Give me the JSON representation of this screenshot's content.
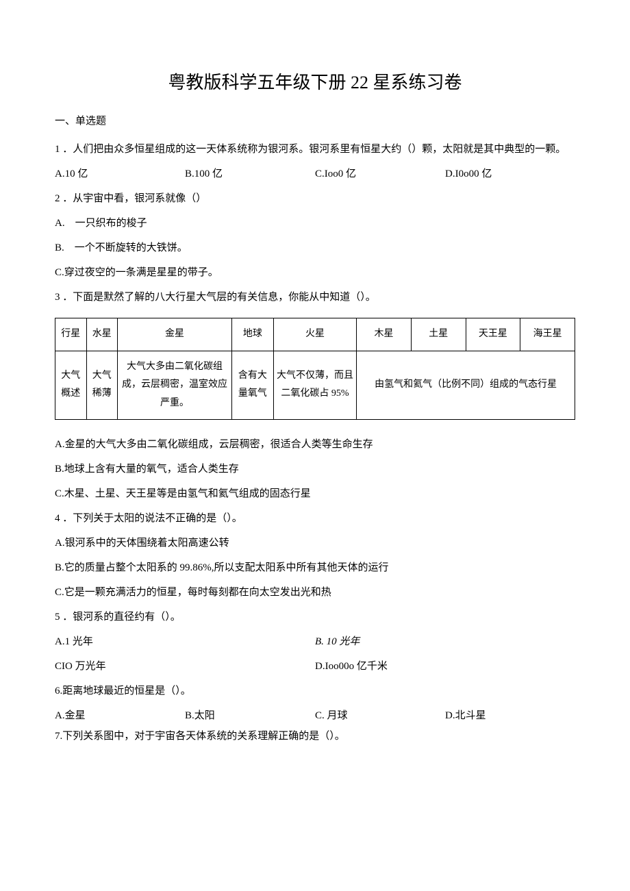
{
  "title": "粤教版科学五年级下册 22 星系练习卷",
  "section1": "一、单选题",
  "q1": {
    "stem": "1 ．人们把由众多恒星组成的这一天体系统称为银河系。银河系里有恒星大约（）颗，太阳就是其中典型的一颗。",
    "opts": {
      "a": "A.10 亿",
      "b": "B.100 亿",
      "c": "C.Ioo0 亿",
      "d": "D.I0o00 亿"
    }
  },
  "q2": {
    "stem": "2 ．从宇宙中看，银河系就像（）",
    "a": "A.　一只织布的梭子",
    "b": "B.　一个不断旋转的大铁饼。",
    "c": "C.穿过夜空的一条满是星星的带子。"
  },
  "q3": {
    "stem": "3 ．下面是默然了解的八大行星大气层的有关信息，你能从中知道（）。",
    "table": {
      "r1": {
        "c1": "行星",
        "c2": "水星",
        "c3": "金星",
        "c4": "地球",
        "c5": "火星",
        "c6": "木星",
        "c7": "土星",
        "c8": "天王星",
        "c9": "海王星"
      },
      "r2": {
        "c1": "大气概述",
        "c2": "大气稀薄",
        "c3": "大气大多由二氧化碳组成，云层稠密，温室效应严重。",
        "c4": "含有大量氧气",
        "c5": "大气不仅薄，而且二氧化碳占 95%",
        "c6": "由氢气和氦气（比例不同）组成的气态行星"
      }
    },
    "a": "A.金星的大气大多由二氧化碳组成，云层稠密，很适合人类等生命生存",
    "b": "B.地球上含有大量的氧气，适合人类生存",
    "c": "C.木星、土星、天王星等是由氢气和氦气组成的固态行星"
  },
  "q4": {
    "stem": "4 ．下列关于太阳的说法不正确的是（）。",
    "a": "A.银河系中的天体围绕着太阳高速公转",
    "b": "B.它的质量占整个太阳系的 99.86%,所以支配太阳系中所有其他天体的运行",
    "c": "C.它是一颗充满活力的恒星，每时每刻都在向太空发出光和热"
  },
  "q5": {
    "stem": "5 ．银河系的直径约有（）。",
    "opts": {
      "a": "A.1 光年",
      "b": "B. 10 光年",
      "c": "CIO 万光年",
      "d": "D.Ioo00o 亿千米"
    }
  },
  "q6": {
    "stem": "6.距离地球最近的恒星是（）。",
    "opts": {
      "a": "A.金星",
      "b": "B.太阳",
      "c": "C. 月球",
      "d": "D.北斗星"
    }
  },
  "q7": {
    "stem": "7.下列关系图中，对于宇宙各天体系统的关系理解正确的是（）。"
  }
}
